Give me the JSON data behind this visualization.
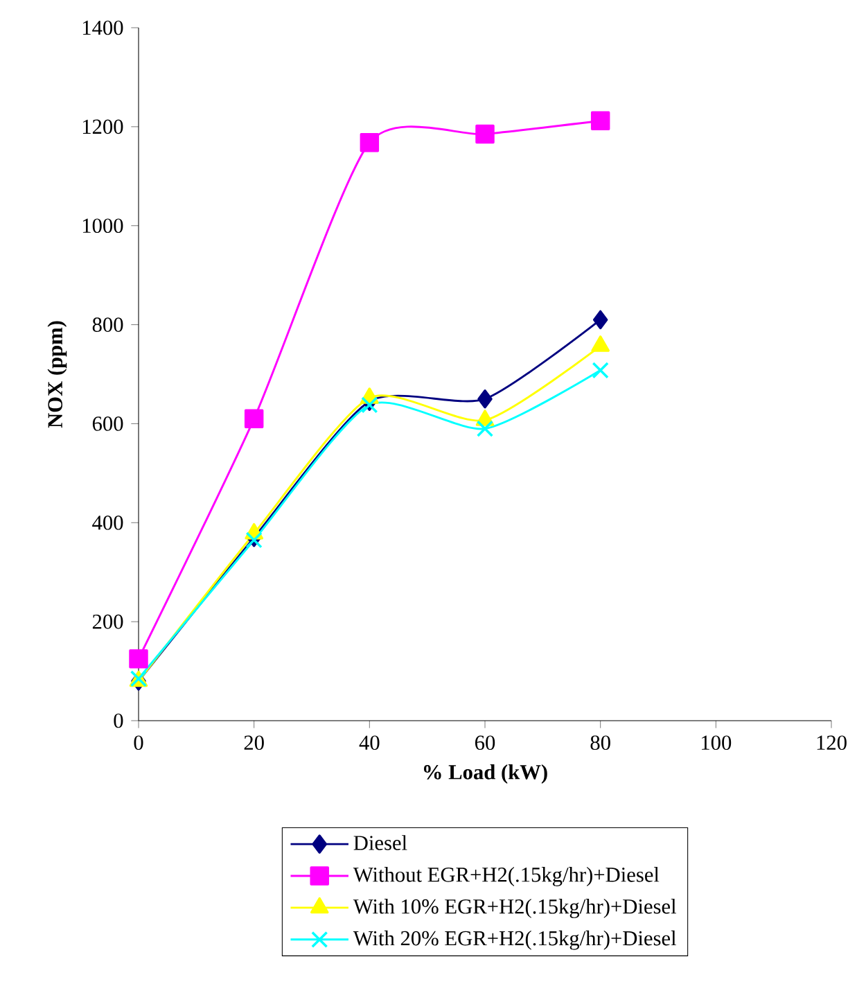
{
  "chart_data": {
    "type": "line",
    "xlabel": "% Load (kW)",
    "ylabel": "NOX (ppm)",
    "x": [
      0,
      20,
      40,
      60,
      80
    ],
    "xlim": [
      0,
      120
    ],
    "xticks": [
      0,
      20,
      40,
      60,
      80,
      100,
      120
    ],
    "ylim": [
      0,
      1400
    ],
    "yticks": [
      0,
      200,
      400,
      600,
      800,
      1000,
      1200,
      1400
    ],
    "legend": "bottom",
    "series": [
      {
        "name": "Diesel",
        "color": "#000080",
        "marker": "diamond",
        "values": [
          80,
          370,
          645,
          650,
          810
        ]
      },
      {
        "name": "Without EGR+H2(.15kg/hr)+Diesel",
        "color": "#ff00ff",
        "marker": "square",
        "values": [
          125,
          610,
          1168,
          1185,
          1212
        ]
      },
      {
        "name": "With 10% EGR+H2(.15kg/hr)+Diesel",
        "color": "#ffff00",
        "marker": "triangle",
        "values": [
          80,
          378,
          652,
          607,
          757
        ]
      },
      {
        "name": "With 20% EGR+H2(.15kg/hr)+Diesel",
        "color": "#00ffff",
        "marker": "cross",
        "values": [
          85,
          365,
          638,
          590,
          708
        ]
      }
    ]
  }
}
